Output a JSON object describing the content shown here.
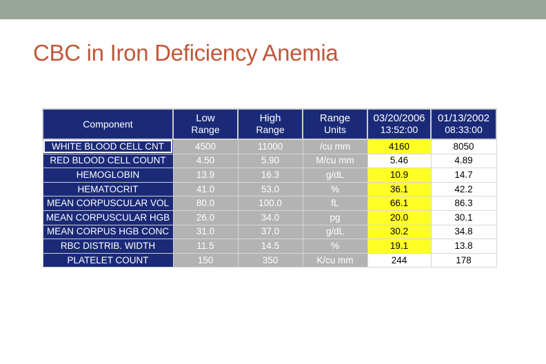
{
  "slide": {
    "title": "CBC in Iron Deficiency Anemia",
    "accent_color": "#98a59a",
    "title_color": "#c0573a"
  },
  "table": {
    "headers": {
      "component": "Component",
      "low_1": "Low",
      "low_2": "Range",
      "high_1": "High",
      "high_2": "Range",
      "units_1": "Range",
      "units_2": "Units",
      "date1_1": "03/20/2006",
      "date1_2": "13:52:00",
      "date2_1": "01/13/2002",
      "date2_2": "08:33:00"
    },
    "rows": [
      {
        "name": "WHITE BLOOD CELL CNT",
        "low": "4500",
        "high": "11000",
        "units": "/cu mm",
        "v1": "4160",
        "v2": "8050",
        "v1_flag": true
      },
      {
        "name": "RED BLOOD CELL COUNT",
        "low": "4.50",
        "high": "5.90",
        "units": "M/cu mm",
        "v1": "5.46",
        "v2": "4.89",
        "v1_flag": false
      },
      {
        "name": "HEMOGLOBIN",
        "low": "13.9",
        "high": "16.3",
        "units": "g/dL",
        "v1": "10.9",
        "v2": "14.7",
        "v1_flag": true
      },
      {
        "name": "HEMATOCRIT",
        "low": "41.0",
        "high": "53.0",
        "units": "%",
        "v1": "36.1",
        "v2": "42.2",
        "v1_flag": true
      },
      {
        "name": "MEAN CORPUSCULAR VOL",
        "low": "80.0",
        "high": "100.0",
        "units": "fL",
        "v1": "66.1",
        "v2": "86.3",
        "v1_flag": true
      },
      {
        "name": "MEAN CORPUSCULAR HGB",
        "low": "26.0",
        "high": "34.0",
        "units": "pg",
        "v1": "20.0",
        "v2": "30.1",
        "v1_flag": true
      },
      {
        "name": "MEAN CORPUS HGB CONC",
        "low": "31.0",
        "high": "37.0",
        "units": "g/dL",
        "v1": "30.2",
        "v2": "34.8",
        "v1_flag": true
      },
      {
        "name": "RBC DISTRIB. WIDTH",
        "low": "11.5",
        "high": "14.5",
        "units": "%",
        "v1": "19.1",
        "v2": "13.8",
        "v1_flag": true
      },
      {
        "name": "PLATELET COUNT",
        "low": "150",
        "high": "350",
        "units": "K/cu mm",
        "v1": "244",
        "v2": "178",
        "v1_flag": false
      }
    ],
    "colors": {
      "header_bg": "#1b2a78",
      "range_bg": "#b3b3b3",
      "flag_bg": "#ffff26"
    }
  }
}
